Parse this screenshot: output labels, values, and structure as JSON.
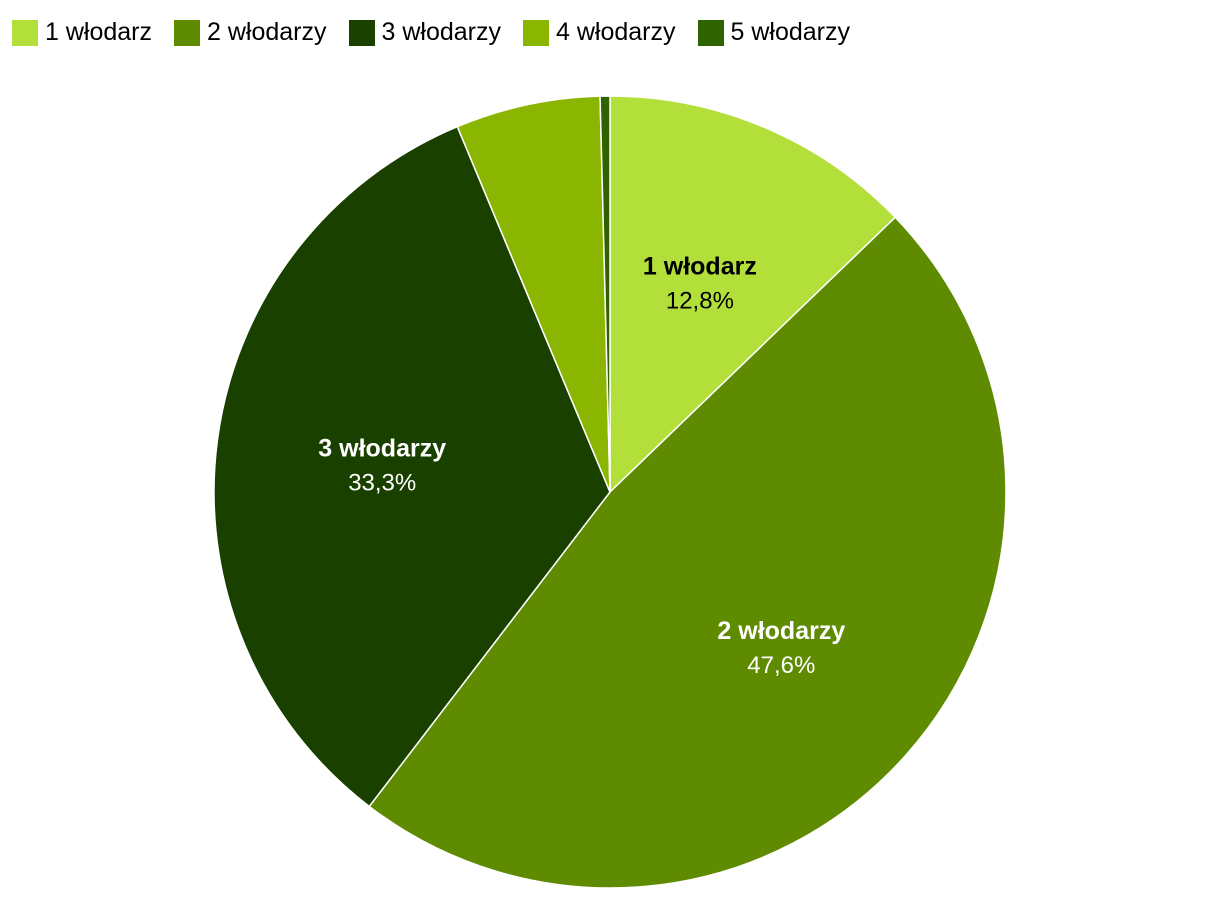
{
  "chart_data": {
    "type": "pie",
    "title": "",
    "legend_position": "top",
    "start_angle_note": "clockwise from 12 o'clock",
    "slices": [
      {
        "label": "1 włodarz",
        "value": 12.8,
        "value_label": "12,8%",
        "color": "#b3df3a",
        "label_color": "#000000",
        "show_data_label": true
      },
      {
        "label": "2 włodarzy",
        "value": 47.6,
        "value_label": "47,6%",
        "color": "#5e8b00",
        "label_color": "#ffffff",
        "show_data_label": true
      },
      {
        "label": "3 włodarzy",
        "value": 33.3,
        "value_label": "33,3%",
        "color": "#1a4000",
        "label_color": "#ffffff",
        "show_data_label": true
      },
      {
        "label": "4 włodarzy",
        "value": 5.9,
        "value_label": "",
        "color": "#8ab500",
        "label_color": "#000000",
        "show_data_label": false
      },
      {
        "label": "5 włodarzy",
        "value": 0.4,
        "value_label": "",
        "color": "#2f6300",
        "label_color": "#000000",
        "show_data_label": false
      }
    ]
  }
}
